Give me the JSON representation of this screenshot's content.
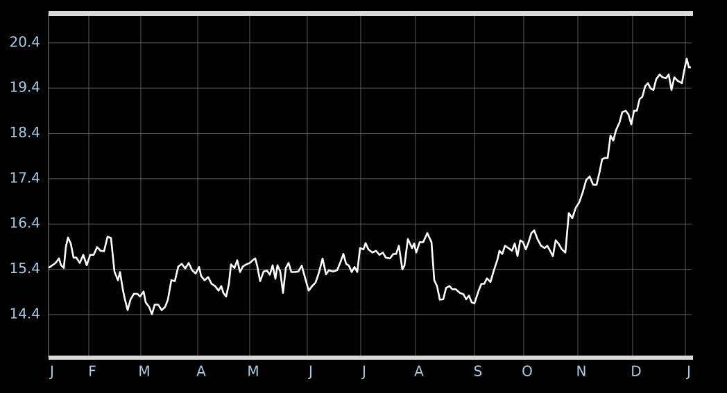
{
  "chart_data": {
    "type": "line",
    "color": "#ffffff",
    "grid": true,
    "x": [
      0,
      10,
      15,
      18,
      22,
      25,
      28,
      32,
      36,
      40,
      45,
      50,
      55,
      60,
      65,
      70,
      75,
      80,
      85,
      90,
      95,
      100,
      103,
      107,
      110,
      114,
      118,
      123,
      128,
      132,
      137,
      140,
      145,
      149,
      153,
      158,
      163,
      168,
      172,
      177,
      182,
      187,
      192,
      197,
      202,
      207,
      212,
      217,
      220,
      225,
      230,
      235,
      240,
      245,
      249,
      252,
      256,
      260,
      263,
      268,
      272,
      276,
      280,
      285,
      290,
      295,
      298,
      301,
      305,
      310,
      315,
      319,
      323,
      327,
      330,
      334,
      338,
      342,
      346,
      350,
      355,
      360,
      365,
      370,
      375,
      380,
      385,
      390,
      395,
      400,
      404,
      410,
      416,
      421,
      425,
      429,
      433,
      437,
      441,
      445,
      449,
      454,
      457,
      461,
      467,
      472,
      477,
      482,
      486,
      492,
      497,
      501,
      505,
      510,
      513,
      518,
      524,
      527,
      530,
      535,
      540,
      546,
      552,
      556,
      560,
      564,
      569,
      573,
      578,
      582,
      587,
      593,
      598,
      602,
      606,
      610,
      614,
      620,
      624,
      628,
      632,
      637,
      642,
      647,
      650,
      654,
      658,
      663,
      668,
      672,
      676,
      680,
      684,
      688,
      692,
      696,
      700,
      705,
      710,
      715,
      719,
      723,
      727,
      731,
      735,
      740,
      745,
      750,
      755,
      760,
      765,
      770,
      775,
      780,
      785,
      790,
      794,
      798,
      802,
      806,
      810,
      814,
      818,
      823,
      827,
      832,
      836,
      840,
      844,
      848,
      852,
      856,
      860,
      864,
      868,
      872,
      876,
      881,
      885,
      890,
      894,
      898,
      902,
      907,
      913,
      916,
      920,
      923,
      926
    ],
    "values": [
      15.43,
      15.54,
      15.64,
      15.49,
      15.43,
      15.9,
      16.1,
      15.97,
      15.66,
      15.66,
      15.54,
      15.72,
      15.49,
      15.72,
      15.72,
      15.89,
      15.81,
      15.8,
      16.12,
      16.09,
      15.35,
      15.16,
      15.34,
      14.96,
      14.74,
      14.5,
      14.73,
      14.86,
      14.86,
      14.8,
      14.91,
      14.67,
      14.57,
      14.41,
      14.62,
      14.62,
      14.5,
      14.57,
      14.73,
      15.16,
      15.14,
      15.46,
      15.52,
      15.42,
      15.54,
      15.38,
      15.31,
      15.45,
      15.25,
      15.16,
      15.23,
      15.08,
      15.03,
      14.93,
      15.03,
      14.88,
      14.8,
      15.08,
      15.51,
      15.43,
      15.6,
      15.34,
      15.46,
      15.51,
      15.54,
      15.61,
      15.64,
      15.46,
      15.14,
      15.35,
      15.37,
      15.28,
      15.49,
      15.19,
      15.49,
      15.35,
      14.88,
      15.43,
      15.54,
      15.34,
      15.34,
      15.35,
      15.48,
      15.2,
      14.93,
      15.03,
      15.11,
      15.34,
      15.64,
      15.29,
      15.38,
      15.35,
      15.38,
      15.57,
      15.74,
      15.52,
      15.48,
      15.34,
      15.45,
      15.34,
      15.87,
      15.84,
      15.98,
      15.84,
      15.77,
      15.81,
      15.72,
      15.77,
      15.66,
      15.64,
      15.74,
      15.74,
      15.92,
      15.4,
      15.48,
      16.07,
      15.87,
      15.97,
      15.77,
      16.0,
      16.0,
      16.2,
      16.0,
      15.16,
      15.03,
      14.73,
      14.74,
      14.99,
      15.03,
      14.96,
      14.96,
      14.88,
      14.85,
      14.74,
      14.82,
      14.67,
      14.65,
      14.93,
      15.08,
      15.08,
      15.2,
      15.12,
      15.38,
      15.61,
      15.81,
      15.74,
      15.92,
      15.87,
      15.81,
      15.97,
      15.69,
      16.04,
      16.0,
      15.84,
      16.0,
      16.2,
      16.26,
      16.06,
      15.92,
      15.87,
      15.92,
      15.81,
      15.69,
      16.04,
      15.97,
      15.84,
      15.77,
      16.64,
      16.53,
      16.76,
      16.88,
      17.1,
      17.37,
      17.45,
      17.27,
      17.27,
      17.53,
      17.83,
      17.86,
      17.86,
      18.35,
      18.24,
      18.47,
      18.64,
      18.87,
      18.9,
      18.82,
      18.6,
      18.9,
      18.9,
      19.16,
      19.21,
      19.44,
      19.51,
      19.39,
      19.36,
      19.6,
      19.7,
      19.64,
      19.62,
      19.7,
      19.36,
      19.64,
      19.56,
      19.51,
      19.77,
      20.05,
      19.86,
      19.86
    ],
    "xlim": [
      0,
      927
    ],
    "xticks": [
      {
        "value": 0,
        "label": "J"
      },
      {
        "value": 58,
        "label": "F"
      },
      {
        "value": 133,
        "label": "M"
      },
      {
        "value": 215,
        "label": "A"
      },
      {
        "value": 290,
        "label": "M"
      },
      {
        "value": 373,
        "label": "J"
      },
      {
        "value": 450,
        "label": "J"
      },
      {
        "value": 529,
        "label": "A"
      },
      {
        "value": 614,
        "label": "S"
      },
      {
        "value": 685,
        "label": "O"
      },
      {
        "value": 763,
        "label": "N"
      },
      {
        "value": 842,
        "label": "D"
      },
      {
        "value": 918,
        "label": "J"
      }
    ],
    "ylim": [
      13.45,
      21.04
    ],
    "yticks": [
      14.4,
      15.4,
      16.4,
      17.4,
      18.4,
      19.4,
      20.4
    ]
  }
}
